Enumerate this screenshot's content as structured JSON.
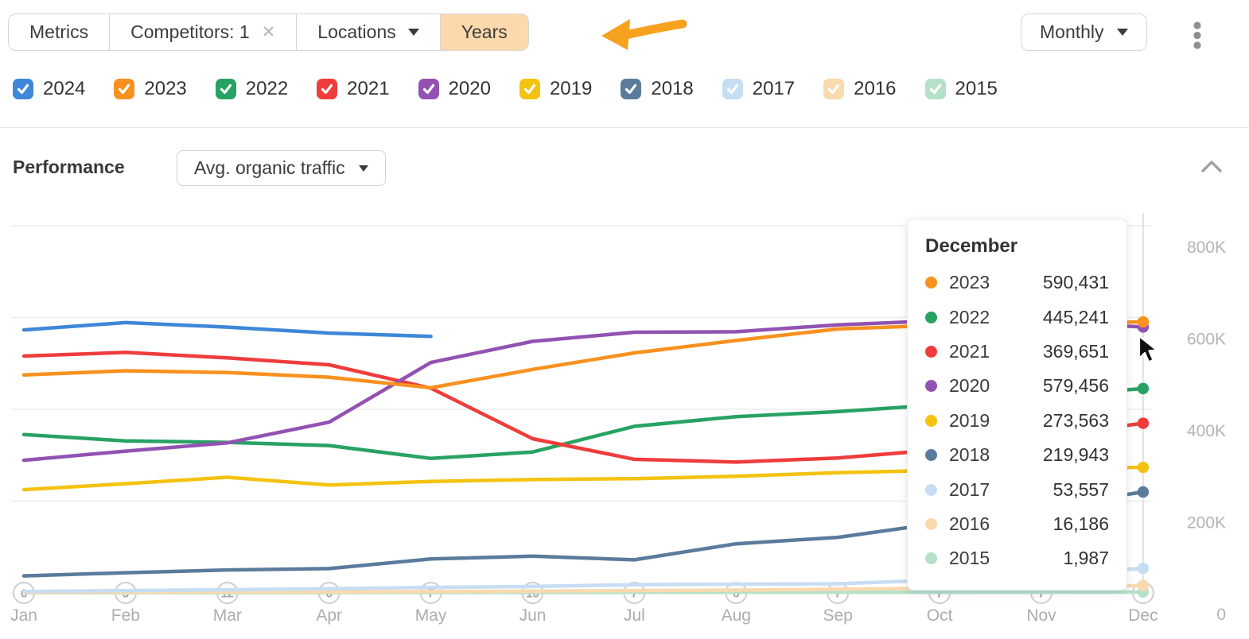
{
  "toolbar": {
    "segments": [
      {
        "label": "Metrics"
      },
      {
        "label": "Competitors: 1"
      },
      {
        "label": "Locations"
      },
      {
        "label": "Years"
      }
    ],
    "interval_selected": "Monthly"
  },
  "years_row": [
    {
      "year": "2024",
      "color": "#3e87d9",
      "checked": true
    },
    {
      "year": "2023",
      "color": "#f8911e",
      "checked": true
    },
    {
      "year": "2022",
      "color": "#28a263",
      "checked": true
    },
    {
      "year": "2021",
      "color": "#ee3d3c",
      "checked": true
    },
    {
      "year": "2020",
      "color": "#9252b1",
      "checked": true
    },
    {
      "year": "2019",
      "color": "#f4c211",
      "checked": true
    },
    {
      "year": "2018",
      "color": "#5a7b9c",
      "checked": true
    },
    {
      "year": "2017",
      "color": "#c7ddf3",
      "checked": true
    },
    {
      "year": "2016",
      "color": "#fad9af",
      "checked": true
    },
    {
      "year": "2015",
      "color": "#b5e1c9",
      "checked": true
    }
  ],
  "performance": {
    "title": "Performance",
    "metric_selected": "Avg. organic traffic"
  },
  "chart_data": {
    "type": "line",
    "x": [
      "Jan",
      "Feb",
      "Mar",
      "Apr",
      "May",
      "Jun",
      "Jul",
      "Aug",
      "Sep",
      "Oct",
      "Nov",
      "Dec"
    ],
    "x_event_counts": [
      6,
      3,
      12,
      6,
      7,
      10,
      7,
      6,
      7,
      7,
      7,
      6
    ],
    "y_ticks": [
      "800K",
      "600K",
      "400K",
      "200K",
      "0"
    ],
    "y_tick_values": [
      800000,
      600000,
      400000,
      200000,
      0
    ],
    "ylim": [
      0,
      800000
    ],
    "grid": true,
    "legend_position": "none",
    "hovered_month": "Dec",
    "series": [
      {
        "name": "2015",
        "color": "#b5e1c9",
        "values": [
          300,
          400,
          500,
          700,
          900,
          1100,
          1300,
          1400,
          1500,
          1600,
          1800,
          1987
        ]
      },
      {
        "name": "2016",
        "color": "#fad9af",
        "values": [
          1000,
          1500,
          2000,
          2500,
          3000,
          4000,
          5000,
          6000,
          8000,
          10000,
          13000,
          16186
        ]
      },
      {
        "name": "2017",
        "color": "#c7ddf3",
        "values": [
          3000,
          5000,
          7000,
          9000,
          12000,
          14000,
          18000,
          19000,
          20000,
          28000,
          40000,
          53557
        ]
      },
      {
        "name": "2018",
        "color": "#5a7b9c",
        "values": [
          37000,
          44000,
          50000,
          53000,
          74000,
          80000,
          72000,
          107000,
          121000,
          152000,
          186000,
          219943
        ]
      },
      {
        "name": "2019",
        "color": "#f4c211",
        "values": [
          225000,
          238000,
          252000,
          235000,
          243000,
          247000,
          249000,
          254000,
          262000,
          267000,
          271000,
          273563
        ]
      },
      {
        "name": "2022",
        "color": "#28a263",
        "values": [
          345000,
          331000,
          328000,
          321000,
          293000,
          307000,
          363000,
          384000,
          395000,
          410000,
          428000,
          445241
        ]
      },
      {
        "name": "2021",
        "color": "#ee3d3c",
        "values": [
          516000,
          524000,
          512000,
          497000,
          446000,
          336000,
          291000,
          285000,
          294000,
          312000,
          340000,
          369651
        ]
      },
      {
        "name": "2020",
        "color": "#9252b1",
        "values": [
          289000,
          309000,
          327000,
          372000,
          502000,
          548000,
          568000,
          569000,
          584000,
          593000,
          590000,
          579456
        ]
      },
      {
        "name": "2023",
        "color": "#f8911e",
        "values": [
          475000,
          484000,
          480000,
          470000,
          447000,
          487000,
          523000,
          550000,
          575000,
          583000,
          587000,
          590431
        ]
      },
      {
        "name": "2024",
        "color": "#3e87d9",
        "values": [
          573000,
          589000,
          579000,
          566000,
          559000
        ]
      }
    ]
  },
  "tooltip": {
    "title": "December",
    "rows": [
      {
        "year": "2023",
        "color": "#f8911e",
        "value": "590,431"
      },
      {
        "year": "2022",
        "color": "#28a263",
        "value": "445,241"
      },
      {
        "year": "2021",
        "color": "#ee3d3c",
        "value": "369,651"
      },
      {
        "year": "2020",
        "color": "#9252b1",
        "value": "579,456"
      },
      {
        "year": "2019",
        "color": "#f4c211",
        "value": "273,563"
      },
      {
        "year": "2018",
        "color": "#5a7b9c",
        "value": "219,943"
      },
      {
        "year": "2017",
        "color": "#c7ddf3",
        "value": "53,557"
      },
      {
        "year": "2016",
        "color": "#fad9af",
        "value": "16,186"
      },
      {
        "year": "2015",
        "color": "#b5e1c9",
        "value": "1,987"
      }
    ]
  }
}
